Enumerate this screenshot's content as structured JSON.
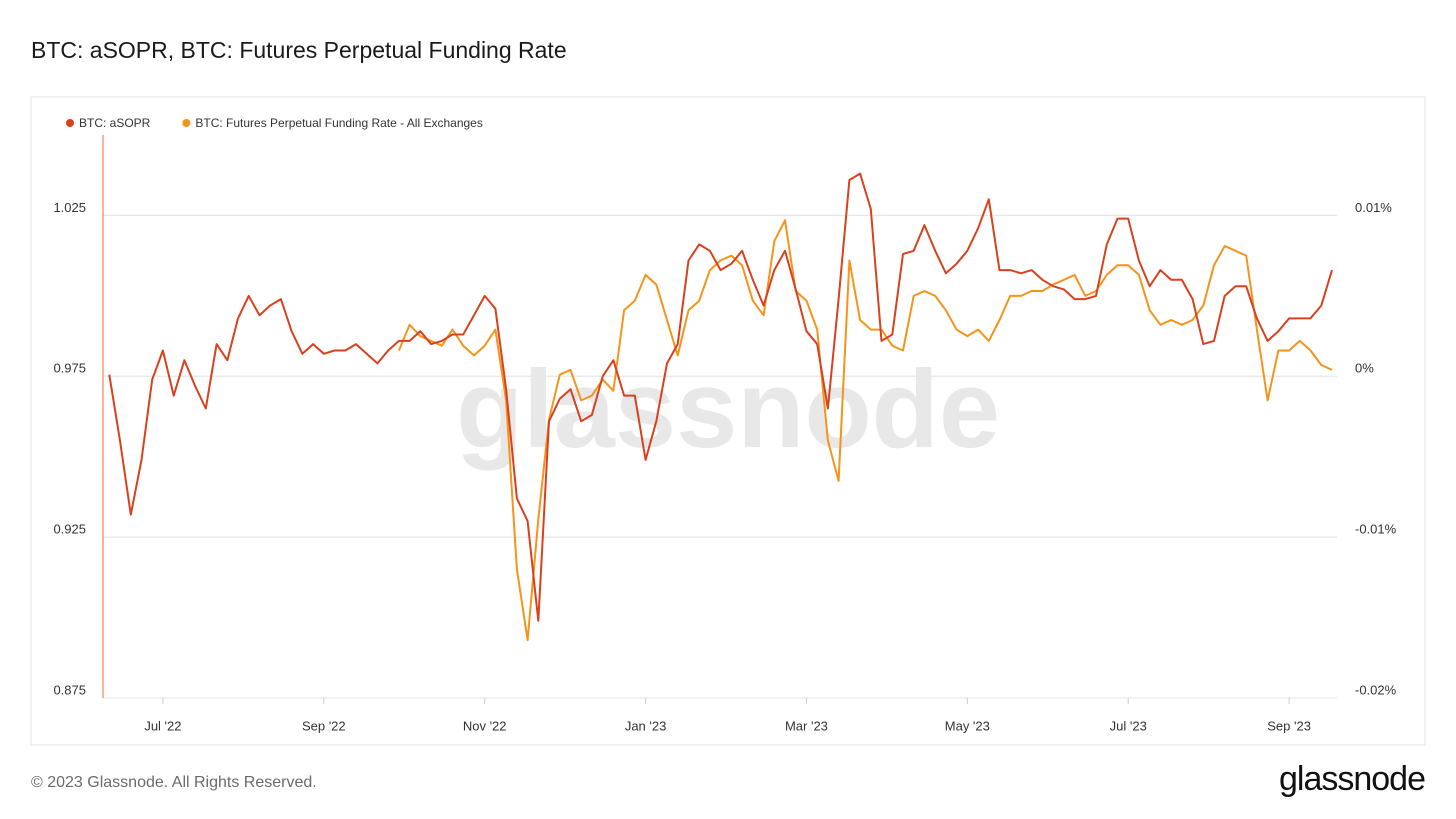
{
  "chart_data": {
    "type": "line",
    "title": "BTC: aSOPR, BTC: Futures Perpetual Funding Rate",
    "categories": [
      null,
      null,
      null,
      null,
      null,
      "Jul '22",
      null,
      null,
      null,
      null,
      null,
      null,
      null,
      null,
      null,
      null,
      null,
      null,
      null,
      null,
      "Sep '22",
      null,
      null,
      null,
      null,
      null,
      null,
      null,
      null,
      null,
      null,
      null,
      null,
      null,
      null,
      "Nov '22",
      null,
      null,
      null,
      null,
      null,
      null,
      null,
      null,
      null,
      null,
      null,
      null,
      null,
      null,
      "Jan '23",
      null,
      null,
      null,
      null,
      null,
      null,
      null,
      null,
      null,
      null,
      null,
      null,
      null,
      null,
      "Mar '23",
      null,
      null,
      null,
      null,
      null,
      null,
      null,
      null,
      null,
      null,
      null,
      null,
      null,
      null,
      "May '23",
      null,
      null,
      null,
      null,
      null,
      null,
      null,
      null,
      null,
      null,
      null,
      null,
      null,
      null,
      "Jul '23",
      null,
      null,
      null,
      null,
      null,
      null,
      null,
      null,
      null,
      null,
      null,
      null,
      null,
      null,
      "Sep '23",
      null,
      null,
      null,
      null
    ],
    "series": [
      {
        "name": "BTC: aSOPR",
        "color": "#d9411e",
        "axis": "y",
        "values": [
          0.9755,
          0.955,
          0.932,
          0.949,
          0.974,
          0.983,
          0.969,
          0.98,
          0.972,
          0.965,
          0.985,
          0.98,
          0.993,
          1.0,
          0.994,
          0.997,
          0.999,
          0.989,
          0.982,
          0.985,
          0.982,
          0.983,
          0.983,
          0.985,
          0.982,
          0.979,
          0.983,
          0.986,
          0.986,
          0.989,
          0.985,
          0.986,
          0.988,
          0.988,
          0.994,
          1.0,
          0.996,
          0.971,
          0.937,
          0.93,
          0.899,
          0.961,
          0.968,
          0.971,
          0.961,
          0.963,
          0.975,
          0.98,
          0.969,
          0.969,
          0.949,
          0.961,
          0.979,
          0.985,
          1.011,
          1.016,
          1.014,
          1.008,
          1.01,
          1.014,
          1.005,
          0.997,
          1.008,
          1.014,
          1.002,
          0.989,
          0.985,
          0.965,
          0.999,
          1.036,
          1.038,
          1.027,
          0.986,
          0.988,
          1.013,
          1.014,
          1.022,
          1.014,
          1.007,
          1.01,
          1.014,
          1.021,
          1.03,
          1.008,
          1.008,
          1.007,
          1.008,
          1.005,
          1.003,
          1.002,
          0.999,
          0.999,
          1.0,
          1.016,
          1.024,
          1.024,
          1.011,
          1.003,
          1.008,
          1.005,
          1.005,
          0.999,
          0.985,
          0.986,
          1.0,
          1.003,
          1.003,
          0.993,
          0.986,
          0.989,
          0.993,
          0.993,
          0.993,
          0.997,
          1.008
        ]
      },
      {
        "name": "BTC: Futures Perpetual Funding Rate - All Exchanges",
        "color": "#f7931a",
        "axis": "y2",
        "values": [
          null,
          null,
          null,
          null,
          null,
          null,
          null,
          null,
          null,
          null,
          null,
          null,
          null,
          null,
          null,
          null,
          null,
          null,
          null,
          null,
          null,
          null,
          null,
          null,
          null,
          null,
          null,
          0.0016,
          0.0032,
          0.0025,
          0.0022,
          0.0019,
          0.0029,
          0.0019,
          0.0013,
          0.0019,
          0.0029,
          -0.0015,
          -0.012,
          -0.0164,
          -0.0089,
          -0.0027,
          0.0001,
          0.0004,
          -0.0015,
          -0.0012,
          -0.0002,
          -0.0009,
          0.0041,
          0.0047,
          0.0063,
          0.0057,
          0.0035,
          0.0013,
          0.0041,
          0.0047,
          0.0066,
          0.0072,
          0.0075,
          0.0069,
          0.0047,
          0.0038,
          0.0084,
          0.0097,
          0.0053,
          0.0047,
          0.0029,
          -0.004,
          -0.0065,
          0.0072,
          0.0035,
          0.0029,
          0.0029,
          0.0019,
          0.0016,
          0.005,
          0.0053,
          0.005,
          0.0041,
          0.0029,
          0.0025,
          0.0029,
          0.0022,
          0.0035,
          0.005,
          0.005,
          0.0053,
          0.0053,
          0.0057,
          0.006,
          0.0063,
          0.005,
          0.0053,
          0.0063,
          0.0069,
          0.0069,
          0.0063,
          0.0041,
          0.0032,
          0.0035,
          0.0032,
          0.0035,
          0.0044,
          0.0069,
          0.0081,
          0.0078,
          0.0075,
          0.0029,
          -0.0015,
          0.0016,
          0.0016,
          0.0022,
          0.0016,
          0.0007,
          0.0004
        ]
      }
    ],
    "ylim": [
      0.875,
      1.05
    ],
    "yticks": [
      0.875,
      0.925,
      0.975,
      1.025
    ],
    "y2lim": [
      -0.02,
      0.015
    ],
    "y2ticks": [
      {
        "value": -0.02,
        "label": "-0.02%"
      },
      {
        "value": -0.01,
        "label": "-0.01%"
      },
      {
        "value": 0,
        "label": "0%"
      },
      {
        "value": 0.01,
        "label": "0.01%"
      }
    ],
    "grid": true,
    "legend": "top-left",
    "watermark": "glassnode"
  },
  "footer": {
    "copyright": "© 2023 Glassnode. All Rights Reserved.",
    "logo": "glassnode"
  }
}
